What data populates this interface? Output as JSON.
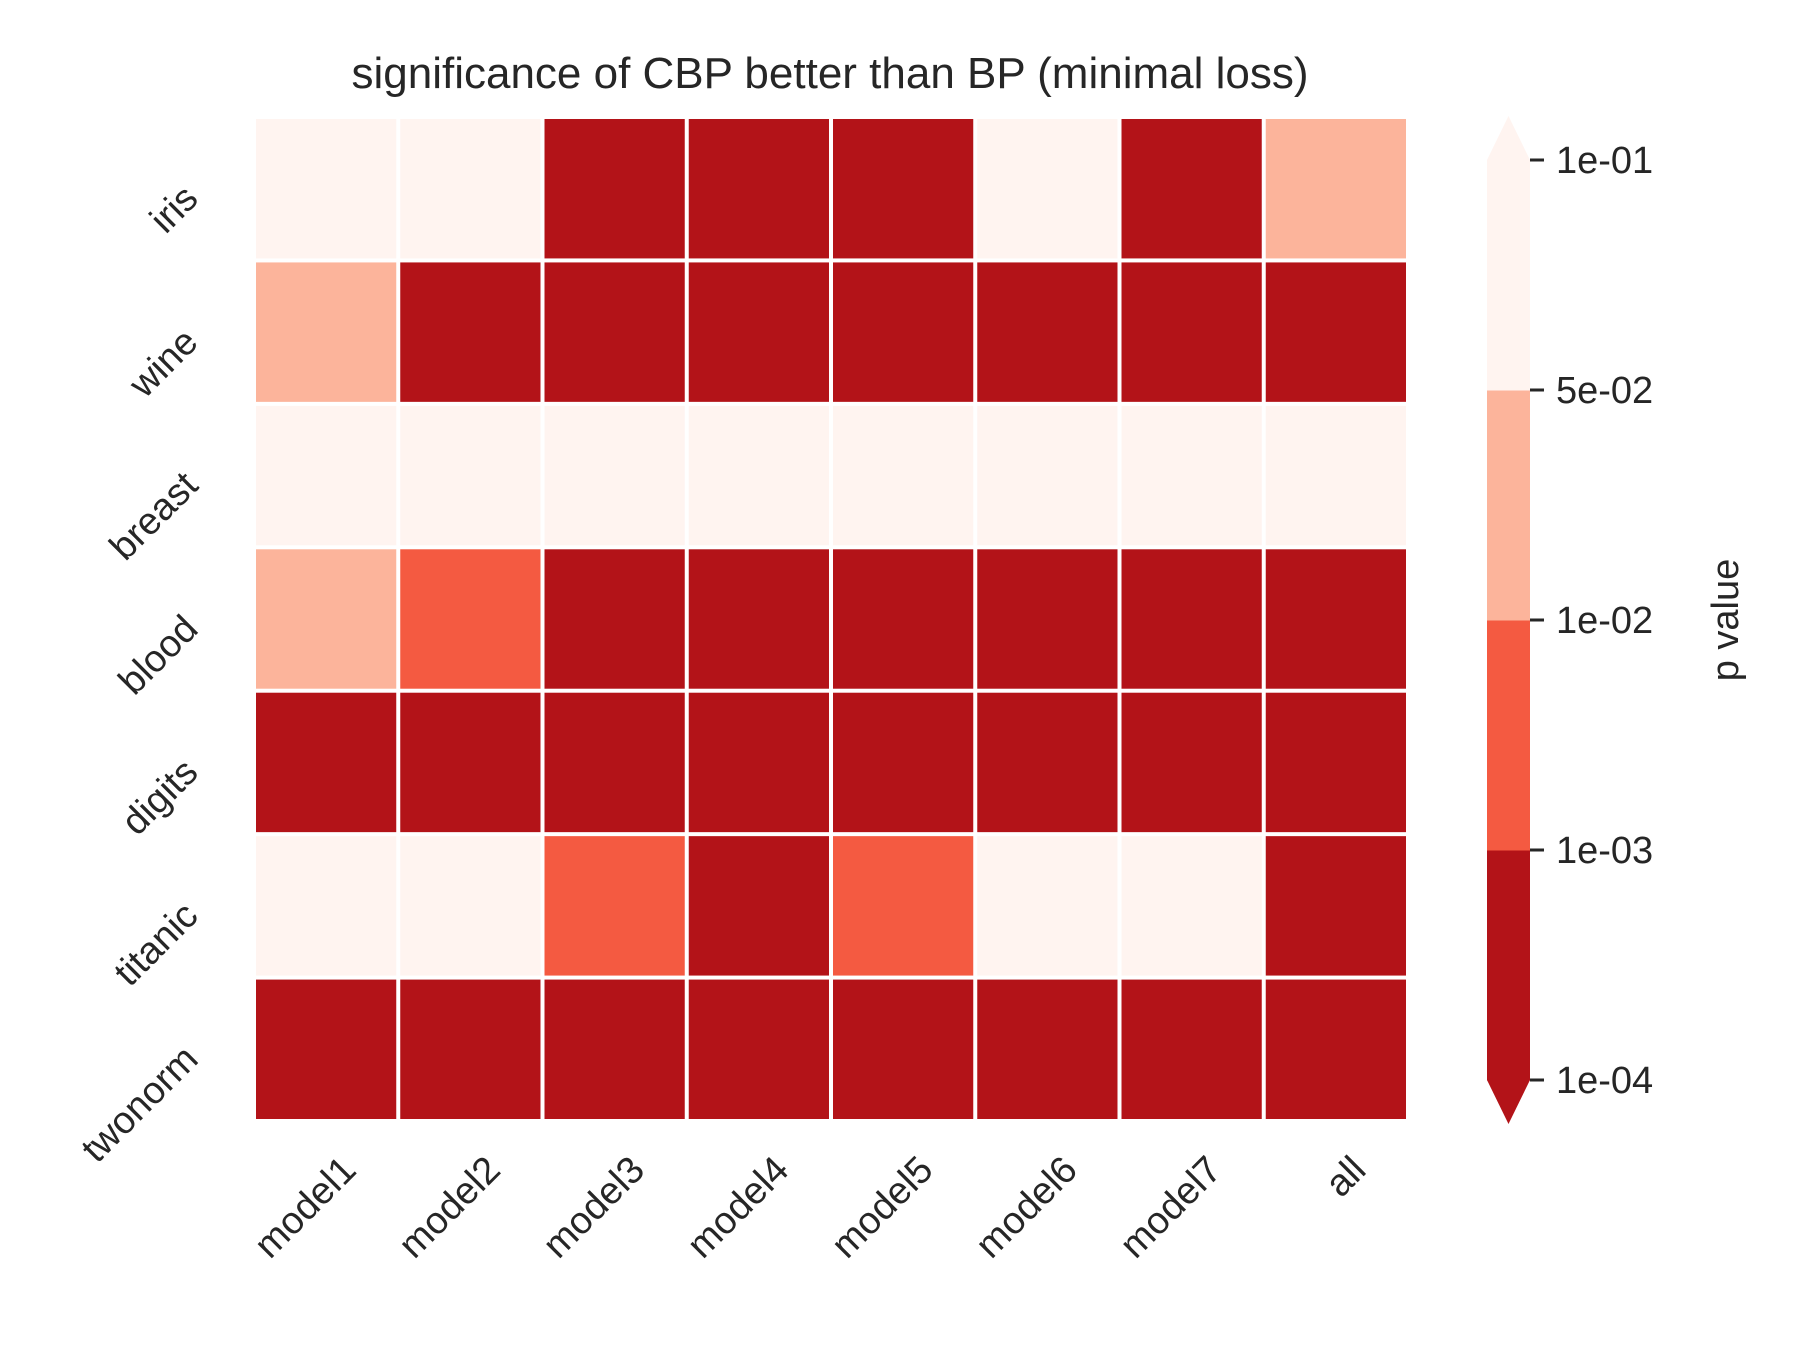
{
  "chart_data": {
    "type": "heatmap",
    "title": "significance of CBP better than BP (minimal loss)",
    "rows": [
      "iris",
      "wine",
      "breast",
      "blood",
      "digits",
      "titanic",
      "twonorm"
    ],
    "columns": [
      "model1",
      "model2",
      "model3",
      "model4",
      "model5",
      "model6",
      "model7",
      "all"
    ],
    "bin_values": [
      [
        3,
        3,
        0,
        0,
        0,
        3,
        0,
        2
      ],
      [
        2,
        0,
        0,
        0,
        0,
        0,
        0,
        0
      ],
      [
        3,
        3,
        3,
        3,
        3,
        3,
        3,
        3
      ],
      [
        2,
        1,
        0,
        0,
        0,
        0,
        0,
        0
      ],
      [
        0,
        0,
        0,
        0,
        0,
        0,
        0,
        0
      ],
      [
        3,
        3,
        1,
        0,
        1,
        3,
        3,
        0
      ],
      [
        0,
        0,
        0,
        0,
        0,
        0,
        0,
        0
      ]
    ],
    "colorbar": {
      "label": "p value",
      "ticks": [
        "1e-04",
        "1e-03",
        "1e-02",
        "5e-02",
        "1e-01"
      ],
      "bins": [
        {
          "range": [
            "1e-04",
            "1e-03"
          ],
          "color": "#b31318"
        },
        {
          "range": [
            "1e-03",
            "1e-02"
          ],
          "color": "#f45a41"
        },
        {
          "range": [
            "1e-02",
            "5e-02"
          ],
          "color": "#fcb49b"
        },
        {
          "range": [
            "5e-02",
            "1e-01"
          ],
          "color": "#fff4f0"
        }
      ],
      "extend": "both",
      "under_color": "#b31318",
      "over_color": "#fff4f0"
    },
    "cell_gap_color": "#ffffff",
    "grid": false
  }
}
